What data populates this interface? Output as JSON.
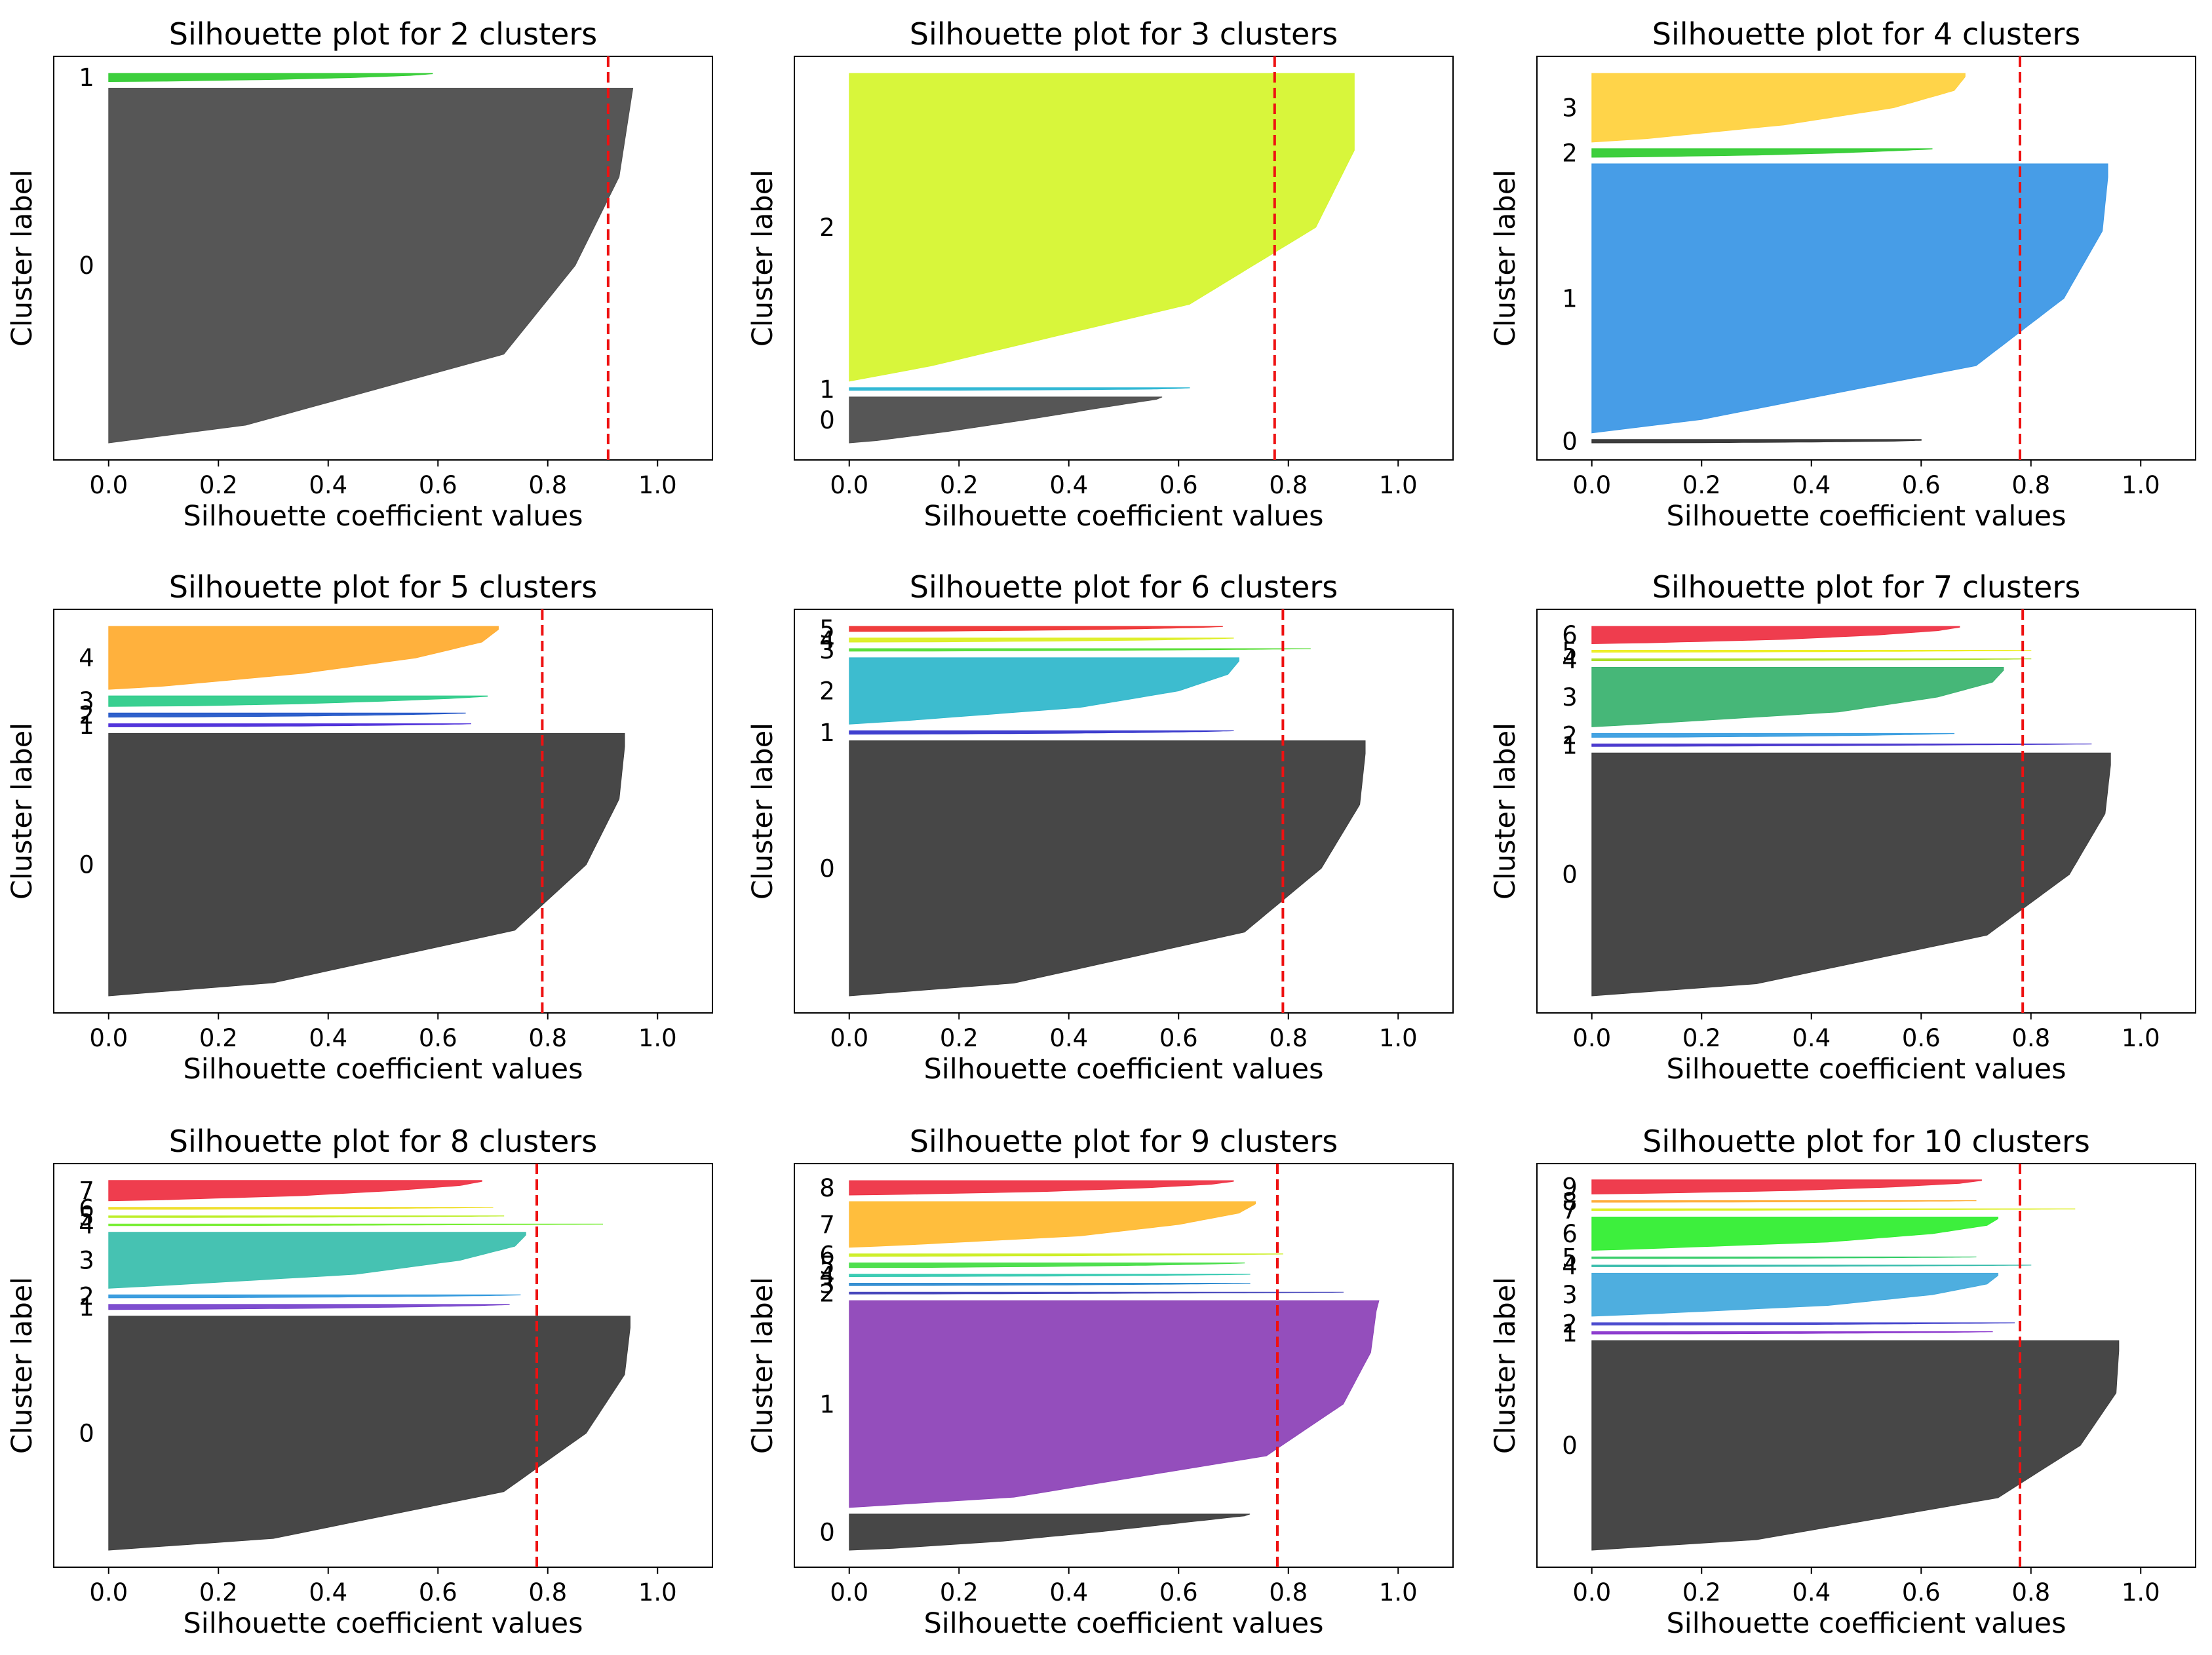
{
  "chart_data": [
    {
      "type": "silhouette",
      "title": "Silhouette plot for 2 clusters",
      "xlabel": "Silhouette coefficient values",
      "ylabel": "Cluster label",
      "xlim": [
        -0.1,
        1.1
      ],
      "xticks": [
        "0.0",
        "0.2",
        "0.4",
        "0.6",
        "0.8",
        "1.0"
      ],
      "avg_score": 0.91,
      "clusters": [
        {
          "label": "0",
          "size": 65,
          "max": 0.955,
          "p95": 0.95,
          "p75": 0.93,
          "p50": 0.85,
          "p25": 0.72,
          "p5": 0.25,
          "min": 0.0,
          "color": "#4d4d4d"
        },
        {
          "label": "1",
          "size": 1.5,
          "max": 0.59,
          "p95": 0.59,
          "p75": 0.55,
          "p50": 0.45,
          "p25": 0.3,
          "p5": 0.1,
          "min": 0.0,
          "color": "#33cc33"
        }
      ]
    },
    {
      "type": "silhouette",
      "title": "Silhouette plot for 3 clusters",
      "xlabel": "Silhouette coefficient values",
      "ylabel": "Cluster label",
      "xlim": [
        -0.1,
        1.1
      ],
      "xticks": [
        "0.0",
        "0.2",
        "0.4",
        "0.6",
        "0.8",
        "1.0"
      ],
      "avg_score": 0.775,
      "clusters": [
        {
          "label": "0",
          "size": 8.5,
          "max": 0.57,
          "p95": 0.56,
          "p75": 0.45,
          "p50": 0.32,
          "p25": 0.18,
          "p5": 0.05,
          "min": 0.0,
          "color": "#4d4d4d"
        },
        {
          "label": "1",
          "size": 0.5,
          "max": 0.62,
          "p95": 0.62,
          "p75": 0.6,
          "p50": 0.55,
          "p25": 0.4,
          "p5": 0.2,
          "min": 0.0,
          "color": "#2bb5d3"
        },
        {
          "label": "2",
          "size": 57,
          "max": 0.92,
          "p95": 0.92,
          "p75": 0.92,
          "p50": 0.85,
          "p25": 0.62,
          "p5": 0.15,
          "min": 0.0,
          "color": "#d6f530"
        }
      ]
    },
    {
      "type": "silhouette",
      "title": "Silhouette plot for 4 clusters",
      "xlabel": "Silhouette coefficient values",
      "ylabel": "Cluster label",
      "xlim": [
        -0.1,
        1.1
      ],
      "xticks": [
        "0.0",
        "0.2",
        "0.4",
        "0.6",
        "0.8",
        "1.0"
      ],
      "avg_score": 0.78,
      "clusters": [
        {
          "label": "0",
          "size": 0.6,
          "max": 0.6,
          "p95": 0.6,
          "p75": 0.6,
          "p50": 0.55,
          "p25": 0.4,
          "p5": 0.2,
          "min": 0.0,
          "color": "#333333"
        },
        {
          "label": "1",
          "size": 47,
          "max": 0.94,
          "p95": 0.94,
          "p75": 0.93,
          "p50": 0.86,
          "p25": 0.7,
          "p5": 0.2,
          "min": 0.0,
          "color": "#3d98e6"
        },
        {
          "label": "2",
          "size": 1.5,
          "max": 0.62,
          "p95": 0.62,
          "p75": 0.55,
          "p50": 0.45,
          "p25": 0.3,
          "p5": 0.1,
          "min": 0.0,
          "color": "#33cc33"
        },
        {
          "label": "3",
          "size": 12,
          "max": 0.68,
          "p95": 0.68,
          "p75": 0.66,
          "p50": 0.55,
          "p25": 0.35,
          "p5": 0.1,
          "min": 0.0,
          "color": "#ffd23f"
        }
      ]
    },
    {
      "type": "silhouette",
      "title": "Silhouette plot for 5 clusters",
      "xlabel": "Silhouette coefficient values",
      "ylabel": "Cluster label",
      "xlim": [
        -0.1,
        1.1
      ],
      "xticks": [
        "0.0",
        "0.2",
        "0.4",
        "0.6",
        "0.8",
        "1.0"
      ],
      "avg_score": 0.79,
      "clusters": [
        {
          "label": "0",
          "size": 50,
          "max": 0.94,
          "p95": 0.94,
          "p75": 0.93,
          "p50": 0.87,
          "p25": 0.74,
          "p5": 0.3,
          "min": 0.0,
          "color": "#3d3d3d"
        },
        {
          "label": "1",
          "size": 0.6,
          "max": 0.66,
          "p95": 0.66,
          "p75": 0.6,
          "p50": 0.5,
          "p25": 0.35,
          "p5": 0.15,
          "min": 0.0,
          "color": "#4a2bd9"
        },
        {
          "label": "2",
          "size": 0.8,
          "max": 0.65,
          "p95": 0.65,
          "p75": 0.6,
          "p50": 0.5,
          "p25": 0.35,
          "p5": 0.15,
          "min": 0.0,
          "color": "#2457c8"
        },
        {
          "label": "3",
          "size": 2,
          "max": 0.69,
          "p95": 0.69,
          "p75": 0.62,
          "p50": 0.5,
          "p25": 0.35,
          "p5": 0.15,
          "min": 0.0,
          "color": "#2ecc8a"
        },
        {
          "label": "4",
          "size": 12,
          "max": 0.71,
          "p95": 0.71,
          "p75": 0.68,
          "p50": 0.56,
          "p25": 0.35,
          "p5": 0.1,
          "min": 0.0,
          "color": "#ffad33"
        }
      ]
    },
    {
      "type": "silhouette",
      "title": "Silhouette plot for 6 clusters",
      "xlabel": "Silhouette coefficient values",
      "ylabel": "Cluster label",
      "xlim": [
        -0.1,
        1.1
      ],
      "xticks": [
        "0.0",
        "0.2",
        "0.4",
        "0.6",
        "0.8",
        "1.0"
      ],
      "avg_score": 0.79,
      "clusters": [
        {
          "label": "0",
          "size": 50,
          "max": 0.94,
          "p95": 0.94,
          "p75": 0.93,
          "p50": 0.86,
          "p25": 0.72,
          "p5": 0.3,
          "min": 0.0,
          "color": "#3d3d3d"
        },
        {
          "label": "1",
          "size": 0.7,
          "max": 0.7,
          "p95": 0.7,
          "p75": 0.65,
          "p50": 0.55,
          "p25": 0.38,
          "p5": 0.15,
          "min": 0.0,
          "color": "#3535cc"
        },
        {
          "label": "2",
          "size": 13,
          "max": 0.71,
          "p95": 0.71,
          "p75": 0.69,
          "p50": 0.6,
          "p25": 0.42,
          "p5": 0.1,
          "min": 0.0,
          "color": "#33b8cc"
        },
        {
          "label": "3",
          "size": 0.5,
          "max": 0.84,
          "p95": 0.84,
          "p75": 0.75,
          "p50": 0.6,
          "p25": 0.4,
          "p5": 0.15,
          "min": 0.0,
          "color": "#55dd33"
        },
        {
          "label": "4",
          "size": 0.8,
          "max": 0.7,
          "p95": 0.7,
          "p75": 0.65,
          "p50": 0.55,
          "p25": 0.38,
          "p5": 0.15,
          "min": 0.0,
          "color": "#ddee22"
        },
        {
          "label": "5",
          "size": 1,
          "max": 0.68,
          "p95": 0.68,
          "p75": 0.63,
          "p50": 0.52,
          "p25": 0.36,
          "p5": 0.15,
          "min": 0.0,
          "color": "#ee3333"
        }
      ]
    },
    {
      "type": "silhouette",
      "title": "Silhouette plot for 7 clusters",
      "xlabel": "Silhouette coefficient values",
      "ylabel": "Cluster label",
      "xlim": [
        -0.1,
        1.1
      ],
      "xticks": [
        "0.0",
        "0.2",
        "0.4",
        "0.6",
        "0.8",
        "1.0"
      ],
      "avg_score": 0.785,
      "clusters": [
        {
          "label": "0",
          "size": 49,
          "max": 0.945,
          "p95": 0.945,
          "p75": 0.935,
          "p50": 0.87,
          "p25": 0.72,
          "p5": 0.3,
          "min": 0.0,
          "color": "#3d3d3d"
        },
        {
          "label": "1",
          "size": 0.5,
          "max": 0.91,
          "p95": 0.91,
          "p75": 0.8,
          "p50": 0.6,
          "p25": 0.4,
          "p5": 0.15,
          "min": 0.0,
          "color": "#4433cc"
        },
        {
          "label": "2",
          "size": 0.8,
          "max": 0.66,
          "p95": 0.66,
          "p75": 0.6,
          "p50": 0.5,
          "p25": 0.35,
          "p5": 0.15,
          "min": 0.0,
          "color": "#3a9ee0"
        },
        {
          "label": "3",
          "size": 12,
          "max": 0.75,
          "p95": 0.75,
          "p75": 0.73,
          "p50": 0.63,
          "p25": 0.45,
          "p5": 0.1,
          "min": 0.0,
          "color": "#3cb371"
        },
        {
          "label": "4",
          "size": 0.4,
          "max": 0.8,
          "p95": 0.8,
          "p75": 0.75,
          "p50": 0.6,
          "p25": 0.4,
          "p5": 0.15,
          "min": 0.0,
          "color": "#aadd22"
        },
        {
          "label": "5",
          "size": 0.4,
          "max": 0.8,
          "p95": 0.8,
          "p75": 0.75,
          "p50": 0.6,
          "p25": 0.4,
          "p5": 0.15,
          "min": 0.0,
          "color": "#eeee22"
        },
        {
          "label": "6",
          "size": 3.5,
          "max": 0.67,
          "p95": 0.67,
          "p75": 0.63,
          "p50": 0.52,
          "p25": 0.35,
          "p5": 0.1,
          "min": 0.0,
          "color": "#ee3344"
        }
      ]
    },
    {
      "type": "silhouette",
      "title": "Silhouette plot for 8 clusters",
      "xlabel": "Silhouette coefficient values",
      "ylabel": "Cluster label",
      "xlim": [
        -0.1,
        1.1
      ],
      "xticks": [
        "0.0",
        "0.2",
        "0.4",
        "0.6",
        "0.8",
        "1.0"
      ],
      "avg_score": 0.78,
      "clusters": [
        {
          "label": "0",
          "size": 46,
          "max": 0.95,
          "p95": 0.95,
          "p75": 0.94,
          "p50": 0.87,
          "p25": 0.72,
          "p5": 0.3,
          "min": 0.0,
          "color": "#3d3d3d"
        },
        {
          "label": "1",
          "size": 1,
          "max": 0.73,
          "p95": 0.73,
          "p75": 0.67,
          "p50": 0.55,
          "p25": 0.38,
          "p5": 0.15,
          "min": 0.0,
          "color": "#7744cc"
        },
        {
          "label": "2",
          "size": 0.6,
          "max": 0.75,
          "p95": 0.75,
          "p75": 0.7,
          "p50": 0.58,
          "p25": 0.4,
          "p5": 0.15,
          "min": 0.0,
          "color": "#3399dd"
        },
        {
          "label": "3",
          "size": 11,
          "max": 0.76,
          "p95": 0.76,
          "p75": 0.74,
          "p50": 0.64,
          "p25": 0.45,
          "p5": 0.1,
          "min": 0.0,
          "color": "#3cbfae"
        },
        {
          "label": "4",
          "size": 0.3,
          "max": 0.9,
          "p95": 0.9,
          "p75": 0.8,
          "p50": 0.6,
          "p25": 0.4,
          "p5": 0.15,
          "min": 0.0,
          "color": "#77ee33"
        },
        {
          "label": "5",
          "size": 0.3,
          "max": 0.72,
          "p95": 0.72,
          "p75": 0.66,
          "p50": 0.54,
          "p25": 0.37,
          "p5": 0.15,
          "min": 0.0,
          "color": "#bbee22"
        },
        {
          "label": "6",
          "size": 0.4,
          "max": 0.7,
          "p95": 0.7,
          "p75": 0.65,
          "p50": 0.53,
          "p25": 0.36,
          "p5": 0.15,
          "min": 0.0,
          "color": "#eedd22"
        },
        {
          "label": "7",
          "size": 4,
          "max": 0.68,
          "p95": 0.68,
          "p75": 0.64,
          "p50": 0.52,
          "p25": 0.35,
          "p5": 0.1,
          "min": 0.0,
          "color": "#ee3344"
        }
      ]
    },
    {
      "type": "silhouette",
      "title": "Silhouette plot for 9 clusters",
      "xlabel": "Silhouette coefficient values",
      "ylabel": "Cluster label",
      "xlim": [
        -0.1,
        1.1
      ],
      "xticks": [
        "0.0",
        "0.2",
        "0.4",
        "0.6",
        "0.8",
        "1.0"
      ],
      "avg_score": 0.78,
      "clusters": [
        {
          "label": "0",
          "size": 7.5,
          "max": 0.73,
          "p95": 0.72,
          "p75": 0.6,
          "p50": 0.45,
          "p25": 0.28,
          "p5": 0.08,
          "min": 0.0,
          "color": "#3d3d3d"
        },
        {
          "label": "1",
          "size": 43,
          "max": 0.965,
          "p95": 0.96,
          "p75": 0.95,
          "p50": 0.9,
          "p25": 0.76,
          "p5": 0.3,
          "min": 0.0,
          "color": "#8e44b8"
        },
        {
          "label": "2",
          "size": 0.4,
          "max": 0.9,
          "p95": 0.9,
          "p75": 0.8,
          "p50": 0.6,
          "p25": 0.4,
          "p5": 0.15,
          "min": 0.0,
          "color": "#4444bb"
        },
        {
          "label": "3",
          "size": 0.5,
          "max": 0.73,
          "p95": 0.73,
          "p75": 0.67,
          "p50": 0.55,
          "p25": 0.38,
          "p5": 0.15,
          "min": 0.0,
          "color": "#2e8bd0"
        },
        {
          "label": "4",
          "size": 0.5,
          "max": 0.73,
          "p95": 0.73,
          "p75": 0.67,
          "p50": 0.55,
          "p25": 0.38,
          "p5": 0.15,
          "min": 0.0,
          "color": "#33c9b0"
        },
        {
          "label": "5",
          "size": 1,
          "max": 0.72,
          "p95": 0.72,
          "p75": 0.66,
          "p50": 0.54,
          "p25": 0.37,
          "p5": 0.15,
          "min": 0.0,
          "color": "#44dd44"
        },
        {
          "label": "6",
          "size": 0.5,
          "max": 0.79,
          "p95": 0.79,
          "p75": 0.72,
          "p50": 0.58,
          "p25": 0.4,
          "p5": 0.15,
          "min": 0.0,
          "color": "#ccee22"
        },
        {
          "label": "7",
          "size": 9.5,
          "max": 0.74,
          "p95": 0.74,
          "p75": 0.71,
          "p50": 0.6,
          "p25": 0.42,
          "p5": 0.1,
          "min": 0.0,
          "color": "#ffbb33"
        },
        {
          "label": "8",
          "size": 3,
          "max": 0.7,
          "p95": 0.7,
          "p75": 0.66,
          "p50": 0.54,
          "p25": 0.36,
          "p5": 0.1,
          "min": 0.0,
          "color": "#ee3344"
        }
      ]
    },
    {
      "type": "silhouette",
      "title": "Silhouette plot for 10 clusters",
      "xlabel": "Silhouette coefficient values",
      "ylabel": "Cluster label",
      "xlim": [
        -0.1,
        1.1
      ],
      "xticks": [
        "0.0",
        "0.2",
        "0.4",
        "0.6",
        "0.8",
        "1.0"
      ],
      "avg_score": 0.78,
      "clusters": [
        {
          "label": "0",
          "size": 44,
          "max": 0.96,
          "p95": 0.96,
          "p75": 0.955,
          "p50": 0.89,
          "p25": 0.74,
          "p5": 0.3,
          "min": 0.0,
          "color": "#3d3d3d"
        },
        {
          "label": "1",
          "size": 0.5,
          "max": 0.73,
          "p95": 0.73,
          "p75": 0.67,
          "p50": 0.55,
          "p25": 0.38,
          "p5": 0.15,
          "min": 0.0,
          "color": "#8833cc"
        },
        {
          "label": "2",
          "size": 0.5,
          "max": 0.77,
          "p95": 0.77,
          "p75": 0.7,
          "p50": 0.57,
          "p25": 0.39,
          "p5": 0.15,
          "min": 0.0,
          "color": "#4444cc"
        },
        {
          "label": "3",
          "size": 9,
          "max": 0.74,
          "p95": 0.74,
          "p75": 0.72,
          "p50": 0.62,
          "p25": 0.43,
          "p5": 0.1,
          "min": 0.0,
          "color": "#44aadd"
        },
        {
          "label": "4",
          "size": 0.3,
          "max": 0.8,
          "p95": 0.8,
          "p75": 0.72,
          "p50": 0.58,
          "p25": 0.4,
          "p5": 0.15,
          "min": 0.0,
          "color": "#33bbaa"
        },
        {
          "label": "5",
          "size": 0.3,
          "max": 0.7,
          "p95": 0.7,
          "p75": 0.65,
          "p50": 0.53,
          "p25": 0.36,
          "p5": 0.15,
          "min": 0.0,
          "color": "#33cc66"
        },
        {
          "label": "6",
          "size": 7,
          "max": 0.74,
          "p95": 0.74,
          "p75": 0.72,
          "p50": 0.62,
          "p25": 0.43,
          "p5": 0.1,
          "min": 0.0,
          "color": "#33ee33"
        },
        {
          "label": "7",
          "size": 0.3,
          "max": 0.88,
          "p95": 0.88,
          "p75": 0.8,
          "p50": 0.62,
          "p25": 0.42,
          "p5": 0.15,
          "min": 0.0,
          "color": "#ddee22"
        },
        {
          "label": "8",
          "size": 0.3,
          "max": 0.7,
          "p95": 0.7,
          "p75": 0.65,
          "p50": 0.53,
          "p25": 0.36,
          "p5": 0.15,
          "min": 0.0,
          "color": "#ffaa33"
        },
        {
          "label": "9",
          "size": 3,
          "max": 0.71,
          "p95": 0.71,
          "p75": 0.67,
          "p50": 0.55,
          "p25": 0.37,
          "p5": 0.1,
          "min": 0.0,
          "color": "#ee3344"
        }
      ]
    }
  ]
}
